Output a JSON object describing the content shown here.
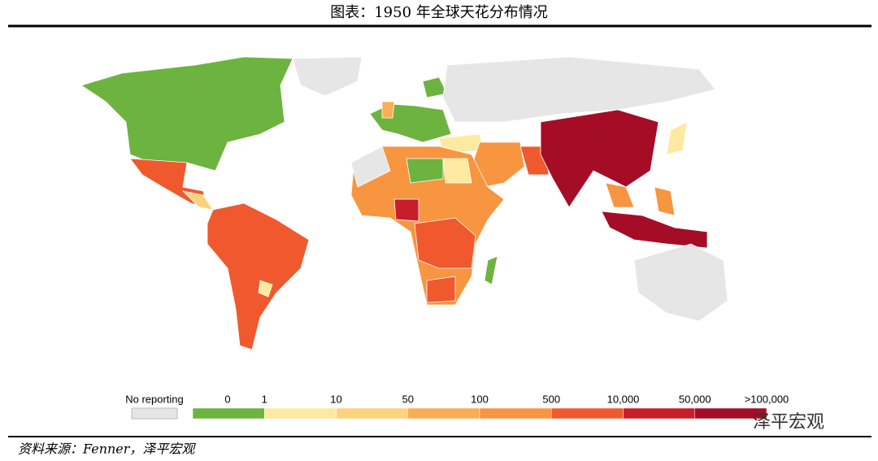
{
  "header": {
    "title": "图表：1950 年全球天花分布情况"
  },
  "legend": {
    "no_reporting": {
      "label": "No reporting",
      "color": "#e6e6e6"
    },
    "labels": [
      "0",
      "1",
      "10",
      "50",
      "100",
      "500",
      "10,000",
      "50,000",
      ">100,000"
    ],
    "colors": [
      "#6db33f",
      "#fdeaa0",
      "#fcd27c",
      "#f9ad55",
      "#f79540",
      "#f0592e",
      "#c81e2c",
      "#a50d27"
    ]
  },
  "footer": {
    "source": "资料来源：Fenner，泽平宏观",
    "watermark": "泽平宏观"
  }
}
